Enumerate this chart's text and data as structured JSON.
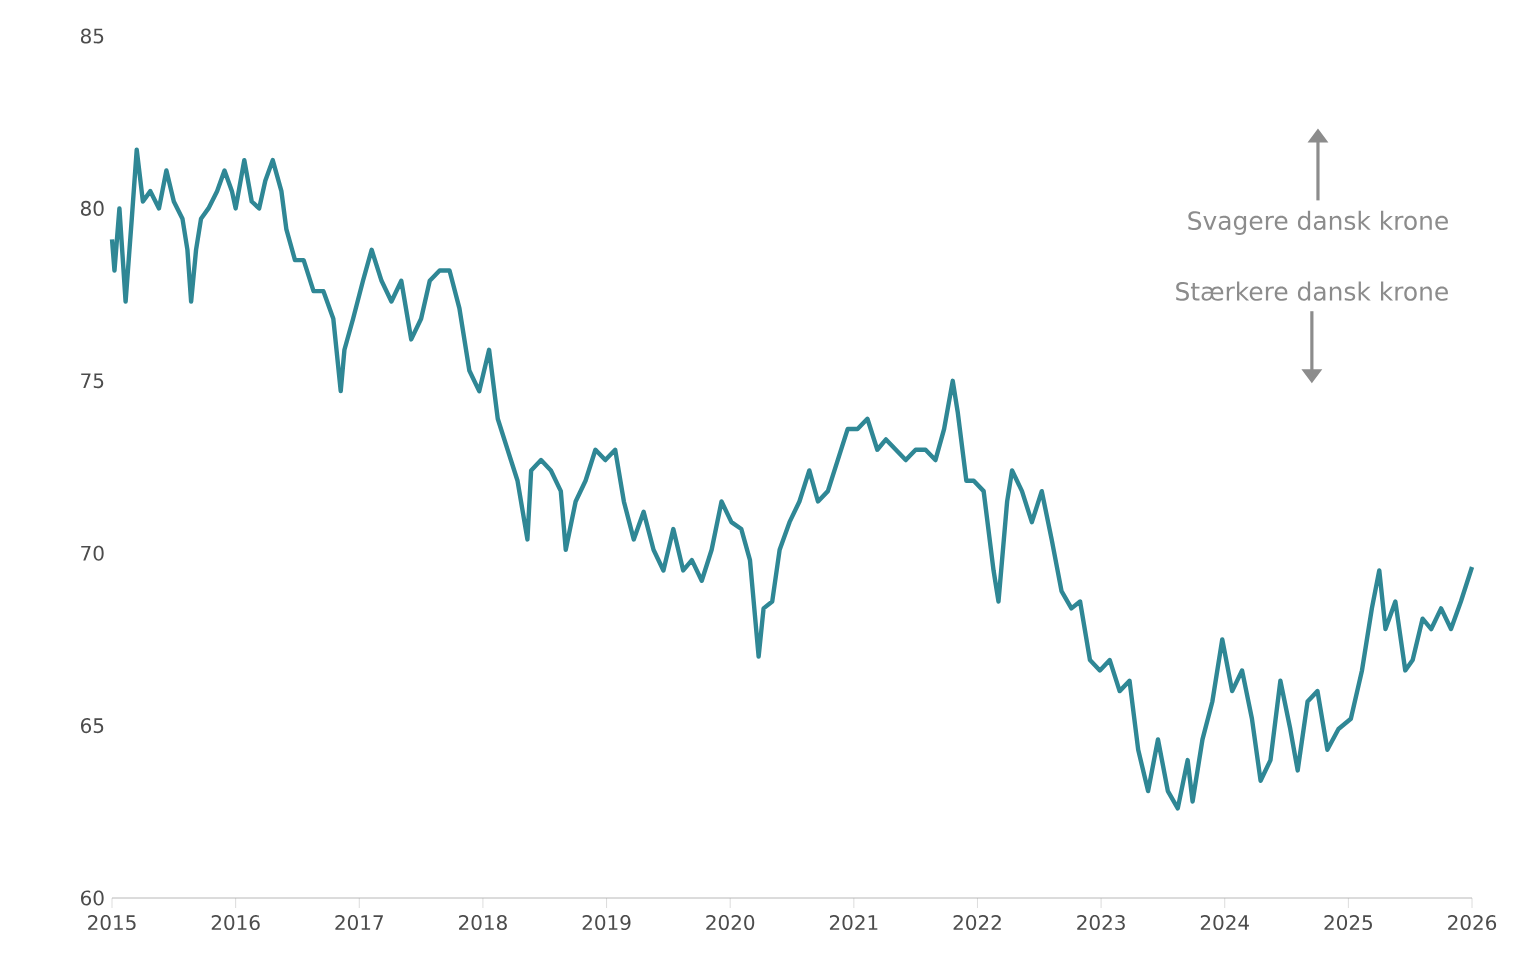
{
  "chart_data": {
    "type": "line",
    "annotations": [
      "Svagere dansk krone",
      "Stærkere dansk krone"
    ],
    "xlim": [
      2015,
      2026
    ],
    "xticks": [
      2015,
      2016,
      2017,
      2018,
      2019,
      2020,
      2021,
      2022,
      2023,
      2024,
      2025,
      2026
    ],
    "ylim": [
      60,
      85
    ],
    "yticks": [
      60,
      65,
      70,
      75,
      80,
      85
    ],
    "grid": false,
    "marker": "none",
    "line_style": "solid",
    "series": [
      {
        "color": "#2f8795",
        "x": [
          2015.0,
          2015.02,
          2015.06,
          2015.11,
          2015.16,
          2015.2,
          2015.25,
          2015.31,
          2015.38,
          2015.44,
          2015.5,
          2015.57,
          2015.61,
          2015.64,
          2015.68,
          2015.72,
          2015.78,
          2015.85,
          2015.91,
          2015.97,
          2016.0,
          2016.07,
          2016.13,
          2016.19,
          2016.24,
          2016.3,
          2016.37,
          2016.41,
          2016.48,
          2016.55,
          2016.63,
          2016.71,
          2016.79,
          2016.85,
          2016.88,
          2016.95,
          2017.03,
          2017.1,
          2017.18,
          2017.26,
          2017.34,
          2017.42,
          2017.5,
          2017.57,
          2017.65,
          2017.73,
          2017.81,
          2017.89,
          2017.97,
          2018.05,
          2018.12,
          2018.2,
          2018.28,
          2018.36,
          2018.39,
          2018.47,
          2018.55,
          2018.63,
          2018.67,
          2018.75,
          2018.83,
          2018.91,
          2018.99,
          2019.07,
          2019.14,
          2019.22,
          2019.3,
          2019.38,
          2019.46,
          2019.54,
          2019.62,
          2019.69,
          2019.77,
          2019.85,
          2019.93,
          2020.01,
          2020.09,
          2020.16,
          2020.23,
          2020.27,
          2020.34,
          2020.4,
          2020.48,
          2020.56,
          2020.64,
          2020.71,
          2020.79,
          2020.87,
          2020.95,
          2021.03,
          2021.11,
          2021.19,
          2021.26,
          2021.34,
          2021.42,
          2021.5,
          2021.58,
          2021.66,
          2021.73,
          2021.8,
          2021.84,
          2021.91,
          2021.97,
          2022.05,
          2022.13,
          2022.17,
          2022.24,
          2022.28,
          2022.36,
          2022.44,
          2022.52,
          2022.6,
          2022.68,
          2022.76,
          2022.83,
          2022.91,
          2022.99,
          2023.07,
          2023.15,
          2023.23,
          2023.3,
          2023.38,
          2023.46,
          2023.54,
          2023.62,
          2023.7,
          2023.74,
          2023.82,
          2023.9,
          2023.98,
          2024.06,
          2024.14,
          2024.22,
          2024.29,
          2024.37,
          2024.45,
          2024.53,
          2024.59,
          2024.67,
          2024.75,
          2024.83,
          2024.92,
          2025.02,
          2025.11,
          2025.19,
          2025.25,
          2025.3,
          2025.38,
          2025.46,
          2025.52,
          2025.6,
          2025.67,
          2025.75,
          2025.83,
          2025.91,
          2026.0
        ],
        "values": [
          79.1,
          78.2,
          80.0,
          77.3,
          79.7,
          81.7,
          80.2,
          80.5,
          80.0,
          81.1,
          80.2,
          79.7,
          78.8,
          77.3,
          78.8,
          79.7,
          80.0,
          80.5,
          81.1,
          80.5,
          80.0,
          81.4,
          80.2,
          80.0,
          80.8,
          81.4,
          80.5,
          79.4,
          78.5,
          78.5,
          77.6,
          77.6,
          76.8,
          74.7,
          75.9,
          76.8,
          77.9,
          78.8,
          77.9,
          77.3,
          77.9,
          76.2,
          76.8,
          77.9,
          78.2,
          78.2,
          77.1,
          75.3,
          74.7,
          75.9,
          73.9,
          73.0,
          72.1,
          70.4,
          72.4,
          72.7,
          72.4,
          71.8,
          70.1,
          71.5,
          72.1,
          73.0,
          72.7,
          73.0,
          71.5,
          70.4,
          71.2,
          70.1,
          69.5,
          70.7,
          69.5,
          69.8,
          69.2,
          70.1,
          71.5,
          70.9,
          70.7,
          69.8,
          67.0,
          68.4,
          68.6,
          70.1,
          70.9,
          71.5,
          72.4,
          71.5,
          71.8,
          72.7,
          73.6,
          73.6,
          73.9,
          73.0,
          73.3,
          73.0,
          72.7,
          73.0,
          73.0,
          72.7,
          73.6,
          75.0,
          74.1,
          72.1,
          72.1,
          71.8,
          69.5,
          68.6,
          71.5,
          72.4,
          71.8,
          70.9,
          71.8,
          70.4,
          68.9,
          68.4,
          68.6,
          66.9,
          66.6,
          66.9,
          66.0,
          66.3,
          64.3,
          63.1,
          64.6,
          63.1,
          62.6,
          64.0,
          62.8,
          64.6,
          65.7,
          67.5,
          66.0,
          66.6,
          65.2,
          63.4,
          64.0,
          66.3,
          64.9,
          63.7,
          65.7,
          66.0,
          64.3,
          64.9,
          65.2,
          66.6,
          68.4,
          69.5,
          67.8,
          68.6,
          66.6,
          66.9,
          68.1,
          67.8,
          68.4,
          67.8,
          68.6,
          69.6
        ]
      }
    ]
  }
}
